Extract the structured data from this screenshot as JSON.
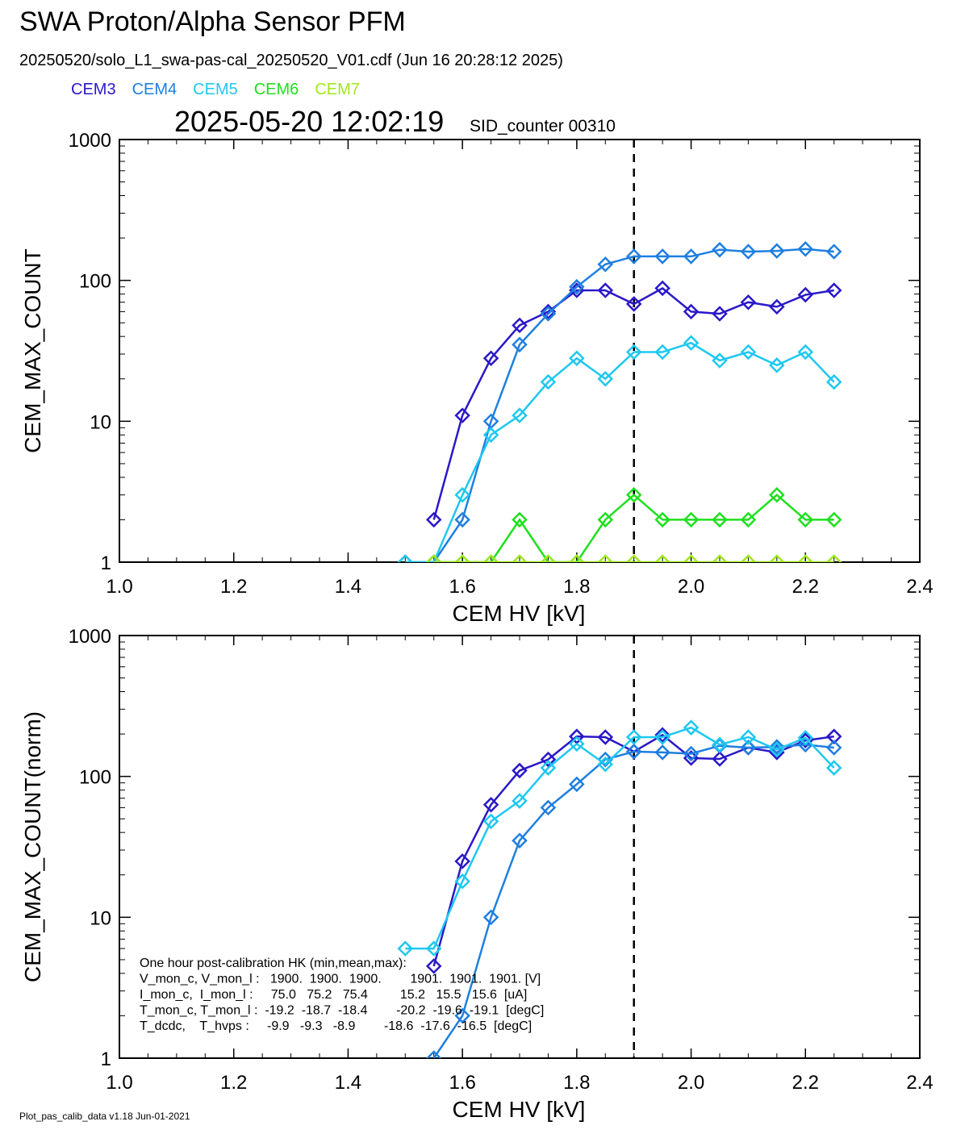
{
  "header": {
    "title": "SWA Proton/Alpha Sensor PFM",
    "subtitle": "20250520/solo_L1_swa-pas-cal_20250520_V01.cdf  (Jun 16 20:28:12 2025)",
    "timestamp": "2025-05-20 12:02:19",
    "sid_counter": "SID_counter 00310"
  },
  "legend": [
    {
      "name": "CEM3",
      "color": "#2a18c8"
    },
    {
      "name": "CEM4",
      "color": "#1f7fe0"
    },
    {
      "name": "CEM5",
      "color": "#1ec8f0"
    },
    {
      "name": "CEM6",
      "color": "#1ee01e"
    },
    {
      "name": "CEM7",
      "color": "#a0e81e"
    }
  ],
  "footer": "Plot_pas_calib_data v1.18 Jun-01-2021",
  "chart_data": [
    {
      "type": "line",
      "xlabel": "CEM HV [kV]",
      "ylabel": "CEM_MAX_COUNT",
      "xlim": [
        1.0,
        2.4
      ],
      "ylim": [
        1,
        1000
      ],
      "yscale": "log",
      "x_ticks": [
        "1.0",
        "1.2",
        "1.4",
        "1.6",
        "1.8",
        "2.0",
        "2.2",
        "2.4"
      ],
      "y_ticks": [
        "1",
        "10",
        "100",
        "1000"
      ],
      "marker": "diamond",
      "vline_x": 1.9,
      "series": [
        {
          "name": "CEM3",
          "color": "#2a18c8",
          "x": [
            1.55,
            1.6,
            1.65,
            1.7,
            1.75,
            1.8,
            1.85,
            1.9,
            1.95,
            2.0,
            2.05,
            2.1,
            2.15,
            2.2,
            2.25
          ],
          "y": [
            2,
            11,
            28,
            48,
            60,
            85,
            85,
            68,
            88,
            60,
            58,
            70,
            65,
            79,
            85
          ]
        },
        {
          "name": "CEM4",
          "color": "#1f7fe0",
          "x": [
            1.5,
            1.55,
            1.6,
            1.65,
            1.7,
            1.75,
            1.8,
            1.85,
            1.9,
            1.95,
            2.0,
            2.05,
            2.1,
            2.15,
            2.2,
            2.25
          ],
          "y": [
            1,
            1,
            2,
            10,
            35,
            58,
            90,
            130,
            148,
            148,
            148,
            165,
            160,
            162,
            167,
            160
          ]
        },
        {
          "name": "CEM5",
          "color": "#1ec8f0",
          "x": [
            1.5,
            1.55,
            1.6,
            1.65,
            1.7,
            1.75,
            1.8,
            1.85,
            1.9,
            1.95,
            2.0,
            2.05,
            2.1,
            2.15,
            2.2,
            2.25
          ],
          "y": [
            1,
            1,
            3,
            8,
            11,
            19,
            28,
            20,
            31,
            31,
            36,
            27,
            31,
            25,
            31,
            19
          ]
        },
        {
          "name": "CEM6",
          "color": "#1ee01e",
          "x": [
            1.55,
            1.6,
            1.65,
            1.7,
            1.75,
            1.8,
            1.85,
            1.9,
            1.95,
            2.0,
            2.05,
            2.1,
            2.15,
            2.2,
            2.25
          ],
          "y": [
            1,
            1,
            1,
            2,
            1,
            1,
            2,
            3,
            2,
            2,
            2,
            2,
            3,
            2,
            2
          ]
        },
        {
          "name": "CEM7",
          "color": "#a0e81e",
          "x": [
            1.55,
            1.6,
            1.65,
            1.7,
            1.75,
            1.8,
            1.85,
            1.9,
            1.95,
            2.0,
            2.05,
            2.1,
            2.15,
            2.2,
            2.25
          ],
          "y": [
            1,
            1,
            1,
            1,
            1,
            1,
            1,
            1,
            1,
            1,
            1,
            1,
            1,
            1,
            1
          ]
        }
      ]
    },
    {
      "type": "line",
      "xlabel": "CEM HV [kV]",
      "ylabel": "CEM_MAX_COUNT(norm)",
      "xlim": [
        1.0,
        2.4
      ],
      "ylim": [
        1,
        1000
      ],
      "yscale": "log",
      "x_ticks": [
        "1.0",
        "1.2",
        "1.4",
        "1.6",
        "1.8",
        "2.0",
        "2.2",
        "2.4"
      ],
      "y_ticks": [
        "1",
        "10",
        "100",
        "1000"
      ],
      "marker": "diamond",
      "vline_x": 1.9,
      "series": [
        {
          "name": "CEM3",
          "color": "#2a18c8",
          "x": [
            1.55,
            1.6,
            1.65,
            1.7,
            1.75,
            1.8,
            1.85,
            1.9,
            1.95,
            2.0,
            2.05,
            2.1,
            2.15,
            2.2,
            2.25
          ],
          "y": [
            4.5,
            25,
            63,
            110,
            132,
            192,
            190,
            150,
            197,
            135,
            133,
            160,
            148,
            180,
            192
          ]
        },
        {
          "name": "CEM4",
          "color": "#1f7fe0",
          "x": [
            1.55,
            1.6,
            1.65,
            1.7,
            1.75,
            1.8,
            1.85,
            1.9,
            1.95,
            2.0,
            2.05,
            2.1,
            2.15,
            2.2,
            2.25
          ],
          "y": [
            1,
            2,
            10,
            35,
            60,
            88,
            132,
            150,
            148,
            145,
            165,
            160,
            162,
            168,
            160
          ]
        },
        {
          "name": "CEM5",
          "color": "#1ec8f0",
          "x": [
            1.5,
            1.55,
            1.6,
            1.65,
            1.7,
            1.75,
            1.8,
            1.85,
            1.9,
            1.95,
            2.0,
            2.05,
            2.1,
            2.15,
            2.2,
            2.25
          ],
          "y": [
            6,
            6,
            18,
            48,
            67,
            115,
            170,
            122,
            190,
            190,
            222,
            168,
            190,
            155,
            188,
            115
          ]
        }
      ],
      "annotation_lines": [
        "One hour post-calibration HK (min,mean,max):",
        "V_mon_c, V_mon_l :   1900.  1900.  1900.        1901.  1901.  1901. [V]",
        "I_mon_c,  I_mon_l :     75.0   75.2   75.4         15.2   15.5   15.6  [uA]",
        "T_mon_c, T_mon_l :  -19.2  -18.7  -18.4        -20.2  -19.6  -19.1  [degC]",
        "T_dcdc,    T_hvps :     -9.9   -9.3   -8.9        -18.6  -17.6  -16.5  [degC]"
      ]
    }
  ]
}
